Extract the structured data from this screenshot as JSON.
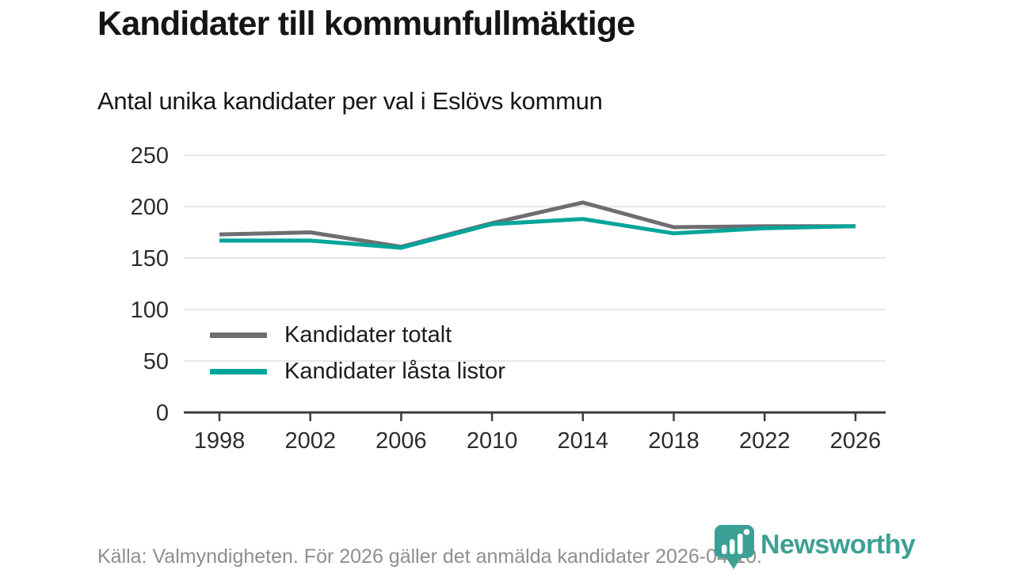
{
  "header": {
    "title": "Kandidater till kommunfullmäktige",
    "subtitle": "Antal unika kandidater per val i Eslövs kommun"
  },
  "chart_data": {
    "type": "line",
    "categories": [
      "1998",
      "2002",
      "2006",
      "2010",
      "2014",
      "2018",
      "2022",
      "2026"
    ],
    "series": [
      {
        "name": "Kandidater totalt",
        "color": "#6e6e72",
        "values": [
          173,
          175,
          161,
          184,
          204,
          180,
          181,
          181
        ]
      },
      {
        "name": "Kandidater låsta listor",
        "color": "#00a59b",
        "values": [
          167,
          167,
          160,
          183,
          188,
          174,
          179,
          181
        ]
      }
    ],
    "title": "Kandidater till kommunfullmäktige",
    "subtitle": "Antal unika kandidater per val i Eslövs kommun",
    "xlabel": "",
    "ylabel": "",
    "ylim": [
      0,
      250
    ],
    "ytick_step": 50,
    "grid": true,
    "legend_position": "inside-left"
  },
  "colors": {
    "grid": "#e7e7e7",
    "axis": "#3b3b3b",
    "tick_label": "#2d2d2d",
    "brand_teal": "#3da094"
  },
  "footer": {
    "source": "Källa: Valmyndigheten. För 2026 gäller det anmälda kandidater 2026-04-10.",
    "logo_text": "Newsworthy"
  }
}
